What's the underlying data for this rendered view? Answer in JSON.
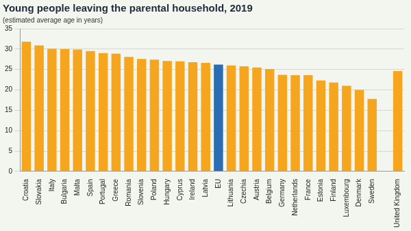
{
  "chart_data": {
    "type": "bar",
    "title": "Young people leaving the parental household, 2019",
    "subtitle": "(estimated average age in years)",
    "categories": [
      "Croatia",
      "Slovakia",
      "Italy",
      "Bulgaria",
      "Malta",
      "Spain",
      "Portugal",
      "Greece",
      "Romania",
      "Slovenia",
      "Poland",
      "Hungary",
      "Cyprus",
      "Ireland",
      "Latvia",
      "EU",
      "Lithuania",
      "Czechia",
      "Austria",
      "Belgium",
      "Germany",
      "Netherlands",
      "France",
      "Estonia",
      "Finland",
      "Luxembourg",
      "Denmark",
      "Sweden",
      null,
      "United Kingdom"
    ],
    "values": [
      31.8,
      30.9,
      30.1,
      30.0,
      29.9,
      29.5,
      29.0,
      28.9,
      28.1,
      27.6,
      27.4,
      27.1,
      27.0,
      26.8,
      26.6,
      26.2,
      26.0,
      25.8,
      25.5,
      25.1,
      23.7,
      23.6,
      23.6,
      22.3,
      21.8,
      21.0,
      20.0,
      17.8,
      null,
      24.6
    ],
    "colors": [
      "#f6a51e",
      "#f6a51e",
      "#f6a51e",
      "#f6a51e",
      "#f6a51e",
      "#f6a51e",
      "#f6a51e",
      "#f6a51e",
      "#f6a51e",
      "#f6a51e",
      "#f6a51e",
      "#f6a51e",
      "#f6a51e",
      "#f6a51e",
      "#f6a51e",
      "#2b6cb3",
      "#f6a51e",
      "#f6a51e",
      "#f6a51e",
      "#f6a51e",
      "#f6a51e",
      "#f6a51e",
      "#f6a51e",
      "#f6a51e",
      "#f6a51e",
      "#f6a51e",
      "#f6a51e",
      "#f6a51e",
      "#f6a51e",
      "#f6a51e"
    ],
    "ylim": [
      0,
      35
    ],
    "yticks": [
      0,
      5,
      10,
      15,
      20,
      25,
      30,
      35
    ],
    "grid": true
  }
}
